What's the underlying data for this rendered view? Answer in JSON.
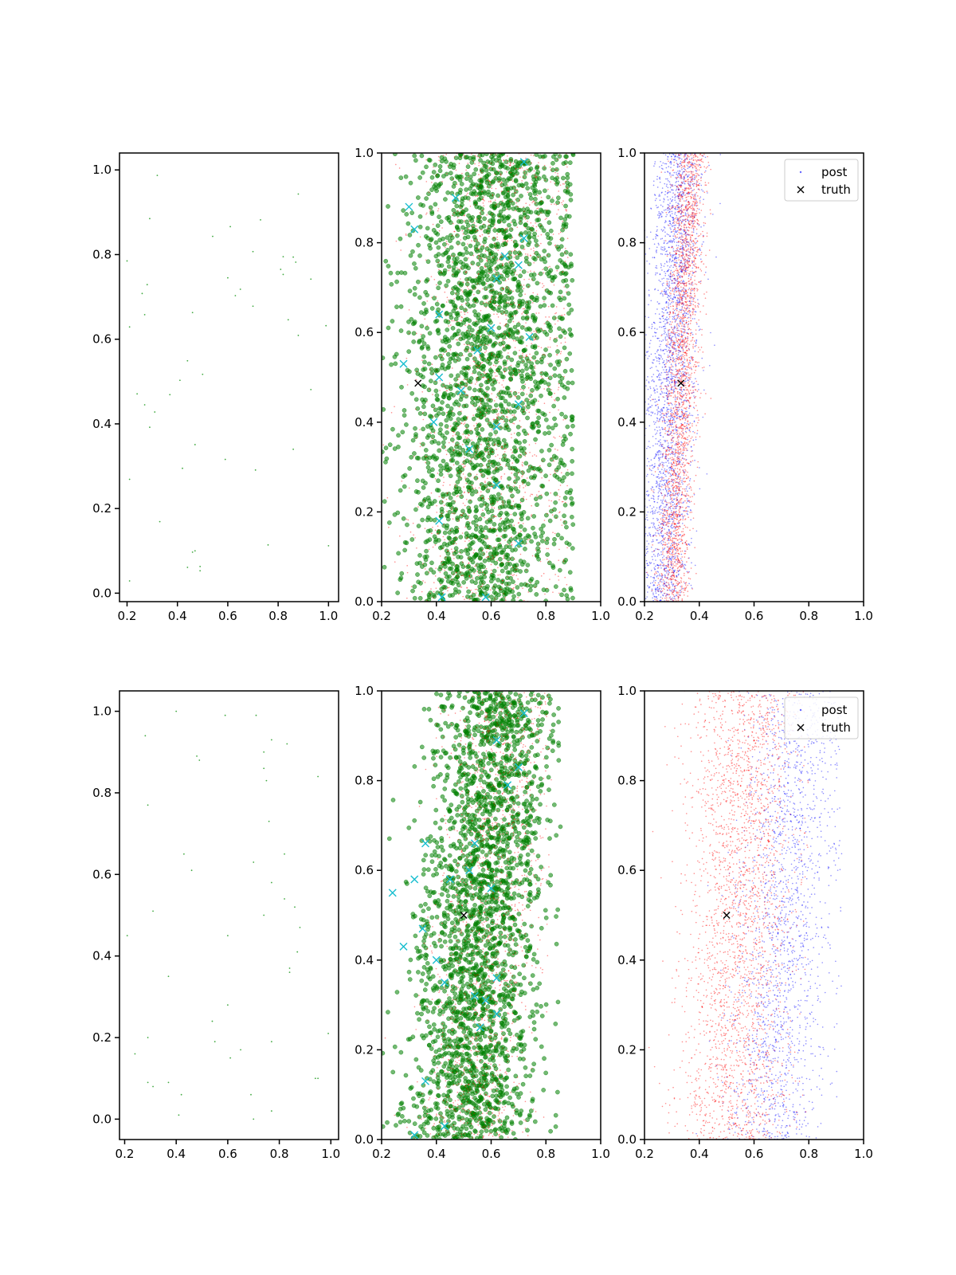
{
  "colors": {
    "obs": "#2ca02c",
    "sample": "#008000",
    "sample_red": "#ff0000",
    "marker_cyan": "#17becf",
    "truth": "#000000",
    "post_blue": "#0000ff",
    "post_red": "#ff0000"
  },
  "chart_data": [
    {
      "type": "scatter",
      "panel": "row1-col1",
      "xlim": [
        0.17,
        1.04
      ],
      "ylim": [
        -0.02,
        1.04
      ],
      "xticks": [
        "0.2",
        "0.4",
        "0.6",
        "0.8",
        "1.0"
      ],
      "yticks": [
        "0.0",
        "0.2",
        "0.4",
        "0.6",
        "0.8",
        "1.0"
      ],
      "grid": false,
      "series": [
        {
          "role": "observations",
          "color": "#2ca02c",
          "marker": "dot",
          "points": [
            [
              0.32,
              0.987
            ],
            [
              0.88,
              0.943
            ],
            [
              0.29,
              0.885
            ],
            [
              0.61,
              0.866
            ],
            [
              0.73,
              0.882
            ],
            [
              0.54,
              0.843
            ],
            [
              0.7,
              0.807
            ],
            [
              0.2,
              0.785
            ],
            [
              0.82,
              0.795
            ],
            [
              0.86,
              0.794
            ],
            [
              0.87,
              0.782
            ],
            [
              0.81,
              0.765
            ],
            [
              0.82,
              0.753
            ],
            [
              0.28,
              0.729
            ],
            [
              0.6,
              0.745
            ],
            [
              0.65,
              0.718
            ],
            [
              0.26,
              0.708
            ],
            [
              0.63,
              0.703
            ],
            [
              0.7,
              0.678
            ],
            [
              0.93,
              0.742
            ],
            [
              0.46,
              0.663
            ],
            [
              0.27,
              0.658
            ],
            [
              0.21,
              0.629
            ],
            [
              0.84,
              0.646
            ],
            [
              0.88,
              0.609
            ],
            [
              0.99,
              0.632
            ],
            [
              0.44,
              0.549
            ],
            [
              0.41,
              0.503
            ],
            [
              0.5,
              0.517
            ],
            [
              0.24,
              0.471
            ],
            [
              0.37,
              0.469
            ],
            [
              0.27,
              0.445
            ],
            [
              0.93,
              0.481
            ],
            [
              0.31,
              0.428
            ],
            [
              0.29,
              0.392
            ],
            [
              0.47,
              0.351
            ],
            [
              0.86,
              0.34
            ],
            [
              0.59,
              0.316
            ],
            [
              0.42,
              0.295
            ],
            [
              0.71,
              0.291
            ],
            [
              0.21,
              0.269
            ],
            [
              0.33,
              0.169
            ],
            [
              0.47,
              0.1
            ],
            [
              0.46,
              0.097
            ],
            [
              0.76,
              0.114
            ],
            [
              1.0,
              0.112
            ],
            [
              0.44,
              0.061
            ],
            [
              0.49,
              0.063
            ],
            [
              0.49,
              0.053
            ],
            [
              0.21,
              0.029
            ]
          ]
        }
      ]
    },
    {
      "type": "scatter",
      "panel": "row1-col2",
      "xlim": [
        0.2,
        1.0
      ],
      "ylim": [
        0.0,
        1.0
      ],
      "xticks": [
        "0.2",
        "0.4",
        "0.6",
        "0.8",
        "1.0"
      ],
      "yticks": [
        "0.0",
        "0.2",
        "0.4",
        "0.6",
        "0.8",
        "1.0"
      ],
      "grid": false,
      "series": [
        {
          "role": "samples",
          "color": "#008000",
          "marker": "circle",
          "count": 2400,
          "distribution": {
            "x_center_at_y0": 0.56,
            "x_center_at_y1": 0.62,
            "x_spread": 0.16,
            "x_max": 0.9
          }
        },
        {
          "role": "samples-red",
          "color": "#ff0000",
          "marker": "dot",
          "count": 1600,
          "distribution": {
            "x_center_at_y0": 0.58,
            "x_center_at_y1": 0.66,
            "x_spread": 0.14,
            "x_max": 0.88
          }
        },
        {
          "role": "markers",
          "color": "#17becf",
          "marker": "x",
          "points": [
            [
              0.3,
              0.88
            ],
            [
              0.32,
              0.83
            ],
            [
              0.28,
              0.53
            ],
            [
              0.41,
              0.64
            ],
            [
              0.41,
              0.5
            ],
            [
              0.49,
              0.47
            ],
            [
              0.39,
              0.4
            ],
            [
              0.41,
              0.18
            ],
            [
              0.42,
              0.01
            ],
            [
              0.47,
              0.9
            ],
            [
              0.55,
              0.56
            ],
            [
              0.6,
              0.61
            ],
            [
              0.62,
              0.72
            ],
            [
              0.65,
              0.77
            ],
            [
              0.7,
              0.75
            ],
            [
              0.72,
              0.98
            ],
            [
              0.72,
              0.81
            ],
            [
              0.74,
              0.59
            ],
            [
              0.7,
              0.44
            ],
            [
              0.62,
              0.39
            ],
            [
              0.52,
              0.34
            ],
            [
              0.62,
              0.26
            ],
            [
              0.7,
              0.13
            ],
            [
              0.58,
              0.01
            ]
          ]
        },
        {
          "role": "truth",
          "color": "#000000",
          "marker": "x",
          "points": [
            [
              0.333,
              0.487
            ]
          ]
        }
      ]
    },
    {
      "type": "scatter",
      "panel": "row1-col3",
      "xlim": [
        0.2,
        1.0
      ],
      "ylim": [
        0.0,
        1.0
      ],
      "xticks": [
        "0.2",
        "0.4",
        "0.6",
        "0.8",
        "1.0"
      ],
      "yticks": [
        "0.0",
        "0.2",
        "0.4",
        "0.6",
        "0.8",
        "1.0"
      ],
      "grid": false,
      "legend": {
        "position": "top-right",
        "entries": [
          "post",
          "truth"
        ]
      },
      "series": [
        {
          "name": "post",
          "color": "#0000ff",
          "marker": "dot",
          "count": 2600,
          "distribution": {
            "x_center_at_y0": 0.26,
            "x_center_at_y1": 0.33,
            "x_spread": 0.045,
            "x_max": 0.5
          }
        },
        {
          "role": "post-red",
          "color": "#ff0000",
          "marker": "dot",
          "count": 2400,
          "distribution": {
            "x_center_at_y0": 0.3,
            "x_center_at_y1": 0.37,
            "x_spread": 0.03,
            "x_max": 0.45
          }
        },
        {
          "name": "truth",
          "color": "#000000",
          "marker": "x",
          "points": [
            [
              0.333,
              0.487
            ]
          ]
        }
      ]
    },
    {
      "type": "scatter",
      "panel": "row2-col1",
      "xlim": [
        0.18,
        1.03
      ],
      "ylim": [
        -0.05,
        1.05
      ],
      "xticks": [
        "0.2",
        "0.4",
        "0.6",
        "0.8",
        "1.0"
      ],
      "yticks": [
        "0.0",
        "0.2",
        "0.4",
        "0.6",
        "0.8",
        "1.0"
      ],
      "grid": false,
      "series": [
        {
          "role": "observations",
          "color": "#2ca02c",
          "marker": "dot",
          "points": [
            [
              0.4,
              1.0
            ],
            [
              0.59,
              0.99
            ],
            [
              0.71,
              0.99
            ],
            [
              0.28,
              0.94
            ],
            [
              0.77,
              0.93
            ],
            [
              0.83,
              0.92
            ],
            [
              0.74,
              0.9
            ],
            [
              0.48,
              0.89
            ],
            [
              0.49,
              0.88
            ],
            [
              0.95,
              0.84
            ],
            [
              0.74,
              0.86
            ],
            [
              0.75,
              0.83
            ],
            [
              0.29,
              0.77
            ],
            [
              0.76,
              0.73
            ],
            [
              0.43,
              0.65
            ],
            [
              0.82,
              0.65
            ],
            [
              0.7,
              0.63
            ],
            [
              0.46,
              0.61
            ],
            [
              0.77,
              0.58
            ],
            [
              0.82,
              0.54
            ],
            [
              0.86,
              0.52
            ],
            [
              0.31,
              0.51
            ],
            [
              0.74,
              0.5
            ],
            [
              0.88,
              0.47
            ],
            [
              0.21,
              0.45
            ],
            [
              0.6,
              0.45
            ],
            [
              0.87,
              0.41
            ],
            [
              0.84,
              0.37
            ],
            [
              0.84,
              0.36
            ],
            [
              0.37,
              0.35
            ],
            [
              0.6,
              0.28
            ],
            [
              0.54,
              0.24
            ],
            [
              0.99,
              0.21
            ],
            [
              0.29,
              0.2
            ],
            [
              0.55,
              0.19
            ],
            [
              0.77,
              0.19
            ],
            [
              0.65,
              0.17
            ],
            [
              0.24,
              0.16
            ],
            [
              0.61,
              0.15
            ],
            [
              0.94,
              0.1
            ],
            [
              0.95,
              0.1
            ],
            [
              0.29,
              0.09
            ],
            [
              0.37,
              0.09
            ],
            [
              0.31,
              0.08
            ],
            [
              0.69,
              0.06
            ],
            [
              0.42,
              0.06
            ],
            [
              0.77,
              0.02
            ],
            [
              0.41,
              0.01
            ],
            [
              0.7,
              0.0
            ]
          ]
        }
      ]
    },
    {
      "type": "scatter",
      "panel": "row2-col2",
      "xlim": [
        0.2,
        1.0
      ],
      "ylim": [
        0.0,
        1.0
      ],
      "xticks": [
        "0.2",
        "0.4",
        "0.6",
        "0.8",
        "1.0"
      ],
      "yticks": [
        "0.0",
        "0.2",
        "0.4",
        "0.6",
        "0.8",
        "1.0"
      ],
      "grid": false,
      "series": [
        {
          "role": "samples",
          "color": "#008000",
          "marker": "circle",
          "count": 2400,
          "distribution": {
            "x_center_at_y0": 0.5,
            "x_center_at_y1": 0.62,
            "x_spread": 0.11,
            "x_max": 0.86
          }
        },
        {
          "role": "samples-red",
          "color": "#ff0000",
          "marker": "dot",
          "count": 1400,
          "distribution": {
            "x_center_at_y0": 0.53,
            "x_center_at_y1": 0.65,
            "x_spread": 0.1,
            "x_max": 0.82
          }
        },
        {
          "role": "markers",
          "color": "#17becf",
          "marker": "x",
          "points": [
            [
              0.24,
              0.55
            ],
            [
              0.32,
              0.58
            ],
            [
              0.36,
              0.66
            ],
            [
              0.35,
              0.47
            ],
            [
              0.28,
              0.43
            ],
            [
              0.4,
              0.4
            ],
            [
              0.43,
              0.35
            ],
            [
              0.36,
              0.13
            ],
            [
              0.32,
              0.01
            ],
            [
              0.43,
              0.03
            ],
            [
              0.45,
              0.58
            ],
            [
              0.52,
              0.6
            ],
            [
              0.54,
              0.66
            ],
            [
              0.6,
              0.56
            ],
            [
              0.62,
              0.36
            ],
            [
              0.58,
              0.31
            ],
            [
              0.54,
              0.32
            ],
            [
              0.62,
              0.28
            ],
            [
              0.56,
              0.25
            ],
            [
              0.66,
              0.79
            ],
            [
              0.7,
              0.83
            ],
            [
              0.62,
              0.89
            ],
            [
              0.72,
              0.95
            ]
          ]
        },
        {
          "role": "truth",
          "color": "#000000",
          "marker": "x",
          "points": [
            [
              0.5,
              0.5
            ]
          ]
        }
      ]
    },
    {
      "type": "scatter",
      "panel": "row2-col3",
      "xlim": [
        0.2,
        1.0
      ],
      "ylim": [
        0.0,
        1.0
      ],
      "xticks": [
        "0.2",
        "0.4",
        "0.6",
        "0.8",
        "1.0"
      ],
      "yticks": [
        "0.0",
        "0.2",
        "0.4",
        "0.6",
        "0.8",
        "1.0"
      ],
      "grid": false,
      "legend": {
        "position": "top-right",
        "entries": [
          "post",
          "truth"
        ]
      },
      "series": [
        {
          "name": "post",
          "color": "#0000ff",
          "marker": "dot",
          "count": 1800,
          "distribution": {
            "x_center_at_y0": 0.66,
            "x_center_at_y1": 0.76,
            "x_spread": 0.09,
            "x_max": 0.92
          }
        },
        {
          "role": "post-red",
          "color": "#ff0000",
          "marker": "dot",
          "count": 2600,
          "distribution": {
            "x_center_at_y0": 0.52,
            "x_center_at_y1": 0.57,
            "x_spread": 0.1,
            "x_max": 0.8
          }
        },
        {
          "name": "truth",
          "color": "#000000",
          "marker": "x",
          "points": [
            [
              0.5,
              0.5
            ]
          ]
        }
      ]
    }
  ]
}
